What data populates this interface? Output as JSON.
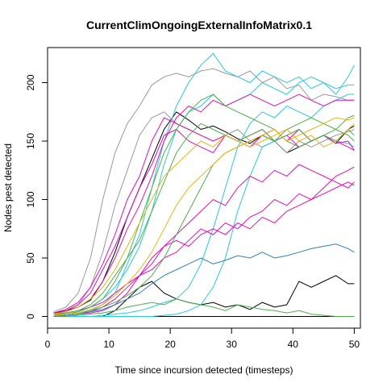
{
  "chart_data": {
    "type": "line",
    "title": "CurrentClimOngoingExternalInfoMatrix0.1",
    "xlabel": "Time since incursion detected (timesteps)",
    "ylabel": "Nodes pest detected",
    "xlim": [
      0,
      51
    ],
    "ylim": [
      -10,
      230
    ],
    "x_ticks": [
      0,
      10,
      20,
      30,
      40,
      50
    ],
    "y_ticks": [
      0,
      50,
      100,
      150,
      200
    ],
    "grid": false,
    "legend": "none",
    "x": [
      1,
      3,
      5,
      7,
      9,
      11,
      13,
      15,
      17,
      19,
      21,
      23,
      25,
      27,
      29,
      31,
      33,
      35,
      37,
      39,
      41,
      43,
      45,
      47,
      49,
      50
    ],
    "series": [
      {
        "color": "#000000",
        "values": [
          3,
          5,
          8,
          14,
          30,
          55,
          85,
          110,
          135,
          160,
          175,
          168,
          160,
          163,
          158,
          152,
          148,
          155,
          150,
          140,
          145,
          150,
          155,
          148,
          160,
          163
        ]
      },
      {
        "color": "#000000",
        "values": [
          0,
          0,
          0,
          0,
          0,
          5,
          15,
          25,
          30,
          20,
          15,
          12,
          10,
          12,
          8,
          10,
          6,
          12,
          8,
          10,
          30,
          25,
          30,
          35,
          28,
          28
        ]
      },
      {
        "color": "#000000",
        "values": [
          0,
          0,
          0,
          0,
          0,
          0,
          0,
          0,
          0,
          0,
          0,
          0,
          0,
          0,
          0,
          0,
          0,
          0,
          0,
          0,
          0,
          0,
          0,
          0,
          0,
          0
        ]
      },
      {
        "color": "#999999",
        "values": [
          4,
          8,
          20,
          50,
          100,
          140,
          165,
          180,
          198,
          205,
          208,
          205,
          210,
          212,
          208,
          205,
          210,
          200,
          205,
          195,
          198,
          185,
          190,
          188,
          185,
          185
        ]
      },
      {
        "color": "#999999",
        "values": [
          2,
          5,
          10,
          25,
          55,
          95,
          125,
          155,
          170,
          175,
          165,
          160,
          155,
          150,
          155,
          160,
          150,
          145,
          150,
          140,
          150,
          145,
          150,
          155,
          158,
          160
        ]
      },
      {
        "color": "#26C9E0",
        "values": [
          1,
          2,
          3,
          5,
          10,
          20,
          45,
          70,
          110,
          150,
          180,
          200,
          215,
          225,
          210,
          205,
          200,
          210,
          205,
          200,
          205,
          195,
          200,
          190,
          205,
          215
        ]
      },
      {
        "color": "#26C9E0",
        "values": [
          0,
          0,
          0,
          0,
          1,
          2,
          3,
          5,
          8,
          12,
          15,
          25,
          45,
          75,
          110,
          145,
          165,
          175,
          170,
          180,
          175,
          170,
          180,
          185,
          190,
          190
        ]
      },
      {
        "color": "#26C9E0",
        "values": [
          1,
          2,
          4,
          8,
          15,
          25,
          40,
          60,
          90,
          130,
          160,
          175,
          180,
          190,
          180,
          185,
          190,
          200,
          195,
          190,
          200,
          205,
          200,
          195,
          198,
          198
        ]
      },
      {
        "color": "#26C9E0",
        "values": [
          0,
          0,
          0,
          0,
          0,
          0,
          0,
          0,
          0,
          1,
          2,
          5,
          10,
          25,
          50,
          90,
          120,
          145,
          150,
          155,
          160,
          150,
          155,
          150,
          148,
          145
        ]
      },
      {
        "color": "#DF10B6",
        "values": [
          3,
          6,
          12,
          25,
          45,
          70,
          100,
          120,
          150,
          170,
          165,
          160,
          155,
          150,
          155,
          150,
          155,
          160,
          150,
          155,
          145,
          150,
          155,
          148,
          150,
          142
        ]
      },
      {
        "color": "#DF10B6",
        "values": [
          2,
          5,
          10,
          20,
          40,
          60,
          85,
          110,
          130,
          155,
          160,
          150,
          145,
          140,
          155,
          150,
          145,
          155,
          160,
          150,
          160,
          150,
          155,
          150,
          145,
          142
        ]
      },
      {
        "color": "#DF10B6",
        "values": [
          0,
          1,
          2,
          4,
          8,
          15,
          25,
          35,
          45,
          60,
          70,
          80,
          90,
          100,
          95,
          110,
          120,
          115,
          125,
          120,
          130,
          125,
          120,
          115,
          110,
          115
        ]
      },
      {
        "color": "#DF10B6",
        "values": [
          1,
          3,
          5,
          8,
          12,
          20,
          28,
          35,
          40,
          50,
          55,
          65,
          75,
          70,
          80,
          75,
          85,
          90,
          100,
          95,
          105,
          100,
          110,
          120,
          125,
          128
        ]
      },
      {
        "color": "#DF10B6",
        "values": [
          0,
          1,
          2,
          3,
          5,
          10,
          20,
          35,
          50,
          60,
          65,
          60,
          70,
          75,
          70,
          80,
          75,
          85,
          80,
          90,
          95,
          100,
          105,
          110,
          115,
          112
        ]
      },
      {
        "color": "#DF10B6",
        "values": [
          2,
          4,
          8,
          15,
          30,
          50,
          75,
          95,
          120,
          150,
          170,
          180,
          175,
          185,
          180,
          185,
          190,
          185,
          180,
          185,
          190,
          185,
          180,
          185,
          185,
          185
        ]
      },
      {
        "color": "#4DAF4A",
        "values": [
          2,
          3,
          5,
          10,
          20,
          35,
          50,
          65,
          90,
          115,
          140,
          155,
          165,
          160,
          155,
          150,
          155,
          160,
          150,
          155,
          160,
          150,
          155,
          150,
          160,
          155
        ]
      },
      {
        "color": "#4DAF4A",
        "values": [
          0,
          1,
          2,
          5,
          8,
          12,
          18,
          25,
          35,
          50,
          70,
          90,
          110,
          130,
          140,
          145,
          150,
          155,
          150,
          160,
          165,
          170,
          165,
          160,
          155,
          150
        ]
      },
      {
        "color": "#4DAF4A",
        "values": [
          1,
          2,
          4,
          8,
          15,
          30,
          50,
          80,
          110,
          140,
          160,
          175,
          185,
          190,
          180,
          175,
          170,
          165,
          160,
          150,
          145,
          150,
          155,
          160,
          170,
          172
        ]
      },
      {
        "color": "#4DAF4A",
        "values": [
          0,
          0,
          1,
          2,
          3,
          5,
          8,
          10,
          12,
          10,
          15,
          12,
          10,
          8,
          5,
          10,
          8,
          6,
          5,
          3,
          5,
          2,
          1,
          0,
          0,
          0
        ]
      },
      {
        "color": "#E5B50E",
        "values": [
          1,
          2,
          3,
          6,
          10,
          18,
          28,
          40,
          55,
          75,
          95,
          110,
          120,
          130,
          140,
          145,
          150,
          155,
          160,
          150,
          155,
          160,
          165,
          170,
          168,
          170
        ]
      },
      {
        "color": "#E5B50E",
        "values": [
          2,
          4,
          8,
          15,
          25,
          40,
          60,
          80,
          100,
          120,
          130,
          140,
          150,
          145,
          155,
          150,
          145,
          150,
          155,
          160,
          150,
          155,
          145,
          150,
          160,
          165
        ]
      },
      {
        "color": "#2F7FC0",
        "values": [
          0,
          1,
          2,
          4,
          6,
          10,
          15,
          20,
          28,
          35,
          40,
          45,
          50,
          45,
          48,
          52,
          50,
          55,
          50,
          52,
          55,
          58,
          60,
          62,
          58,
          55
        ]
      }
    ]
  }
}
